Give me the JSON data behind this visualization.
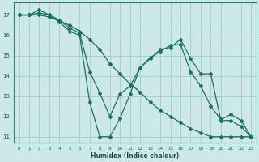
{
  "xlabel": "Humidex (Indice chaleur)",
  "bg_color": "#cce8e8",
  "grid_color": "#aacece",
  "line_color": "#1a7060",
  "xlim": [
    -0.5,
    23.5
  ],
  "ylim": [
    10.7,
    17.6
  ],
  "yticks": [
    11,
    12,
    13,
    14,
    15,
    16,
    17
  ],
  "xticks": [
    0,
    1,
    2,
    3,
    4,
    5,
    6,
    7,
    8,
    9,
    10,
    11,
    12,
    13,
    14,
    15,
    16,
    17,
    18,
    19,
    20,
    21,
    22,
    23
  ],
  "series": [
    {
      "x": [
        0,
        1,
        2,
        3,
        4,
        5,
        6,
        7,
        8,
        9,
        10,
        11,
        12,
        13,
        14,
        15,
        16,
        17,
        18,
        19,
        20,
        21,
        22,
        23
      ],
      "y": [
        17.0,
        17.0,
        17.25,
        17.0,
        16.65,
        16.2,
        16.0,
        12.7,
        11.0,
        11.0,
        11.9,
        13.1,
        14.4,
        14.85,
        15.3,
        15.4,
        15.8,
        14.85,
        14.1,
        14.1,
        11.8,
        11.8,
        11.5,
        11.0
      ],
      "linestyle": "-"
    },
    {
      "x": [
        0,
        1,
        2,
        3,
        4,
        5,
        6,
        7,
        8,
        9,
        10,
        11,
        12,
        13,
        14,
        15,
        16,
        17,
        18,
        19,
        20,
        21,
        22,
        23
      ],
      "y": [
        17.0,
        17.0,
        17.0,
        16.9,
        16.7,
        16.5,
        16.2,
        15.8,
        15.3,
        14.6,
        14.1,
        13.6,
        13.2,
        12.7,
        12.3,
        12.0,
        11.7,
        11.4,
        11.2,
        11.0,
        11.0,
        11.0,
        11.0,
        11.0
      ],
      "linestyle": "-"
    },
    {
      "x": [
        0,
        1,
        2,
        3,
        4,
        5,
        6,
        7,
        8,
        9,
        10,
        11,
        12,
        13,
        14,
        15,
        16,
        17,
        18,
        19,
        20,
        21,
        22,
        23
      ],
      "y": [
        17.0,
        17.0,
        17.1,
        17.0,
        16.75,
        16.35,
        16.1,
        14.2,
        13.15,
        12.0,
        13.1,
        13.5,
        14.4,
        14.9,
        15.2,
        15.5,
        15.55,
        14.2,
        13.5,
        12.5,
        11.85,
        12.1,
        11.8,
        11.0
      ],
      "linestyle": "-"
    }
  ]
}
